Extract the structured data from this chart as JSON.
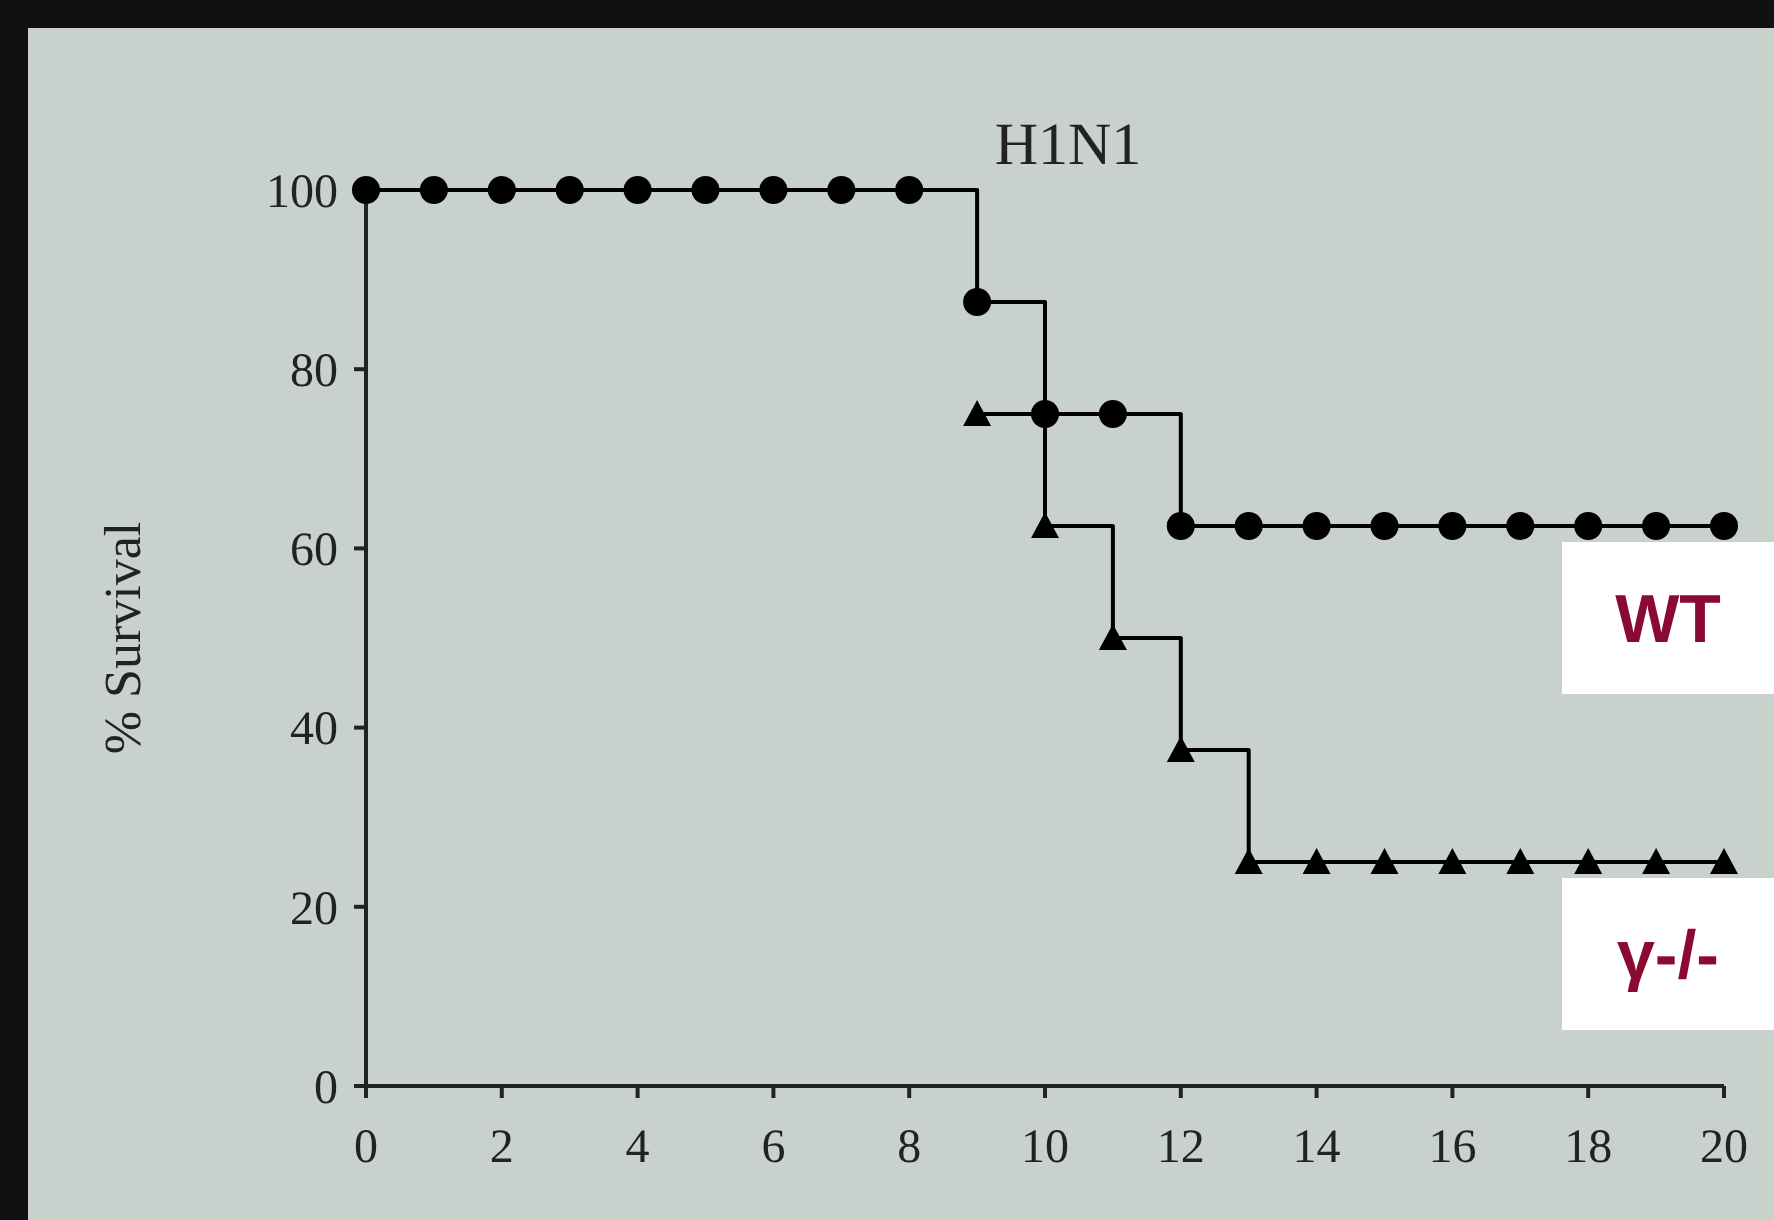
{
  "chart_data": {
    "type": "step",
    "title": "H1N1",
    "ylabel": "% Survival",
    "x": [
      0,
      1,
      2,
      3,
      4,
      5,
      6,
      7,
      8,
      9,
      10,
      11,
      12,
      13,
      14,
      15,
      16,
      17,
      18,
      19,
      20
    ],
    "series": [
      {
        "name": "γ-/-",
        "color": "#000000",
        "marker": "triangle",
        "values": [
          null,
          null,
          null,
          null,
          null,
          null,
          null,
          null,
          null,
          75,
          62.5,
          50,
          37.5,
          25,
          25,
          25,
          25,
          25,
          25,
          25,
          25
        ]
      },
      {
        "name": "WT",
        "color": "#000000",
        "marker": "circle",
        "values": [
          100,
          100,
          100,
          100,
          100,
          100,
          100,
          100,
          100,
          87.5,
          75,
          75,
          62.5,
          62.5,
          62.5,
          62.5,
          62.5,
          62.5,
          62.5,
          62.5,
          62.5
        ]
      }
    ],
    "xlim": [
      0,
      20
    ],
    "xticks": [
      0,
      2,
      4,
      6,
      8,
      10,
      12,
      14,
      16,
      18,
      20
    ],
    "ylim": [
      0,
      100
    ],
    "yticks": [
      0,
      20,
      40,
      60,
      80,
      100
    ],
    "grid": false
  }
}
